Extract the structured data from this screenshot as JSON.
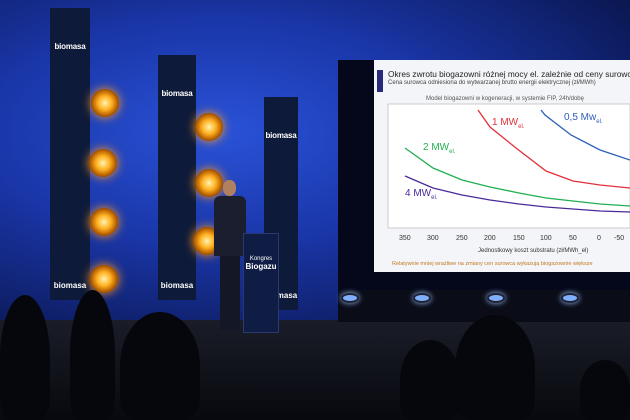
{
  "banners": {
    "brand": "biomasa"
  },
  "podium": {
    "line1": "Kongres",
    "line2": "Biogazu"
  },
  "slide": {
    "title": "Okres zwrotu biogazowni różnej mocy el. zależnie od ceny surowca",
    "subtitle": "Cena surowca odniesiona do wytwarzanej brutto energii elektrycznej (zł/MWh)",
    "model_note": "Model biogazowni w kogeneracji, w systemie FIP, 24h/dobę",
    "x_axis_label": "Jednostkowy koszt substratu (zł/MWh_el)",
    "x_ticks": [
      "350",
      "300",
      "250",
      "200",
      "150",
      "100",
      "50",
      "0",
      "-50"
    ],
    "footer": "Relatywnie mniej wrażliwe na zmiany cen surowca wykazują biogazownie większe",
    "series": [
      {
        "name": "1 MW",
        "sub": "el.",
        "color": "#e0303a"
      },
      {
        "name": "0,5 Mw",
        "sub": "el.",
        "color": "#2e5fb8"
      },
      {
        "name": "2 MW",
        "sub": "el.",
        "color": "#20b050"
      },
      {
        "name": "4 MW",
        "sub": "el.",
        "color": "#4a2a9a"
      }
    ]
  }
}
